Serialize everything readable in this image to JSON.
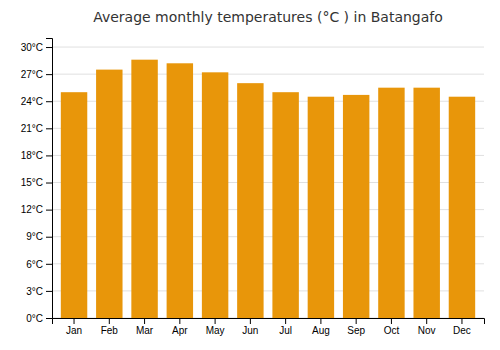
{
  "chart_data": {
    "type": "bar",
    "title": "Average monthly temperatures (°C ) in Batangafo",
    "categories": [
      "Jan",
      "Feb",
      "Mar",
      "Apr",
      "May",
      "Jun",
      "Jul",
      "Aug",
      "Sep",
      "Oct",
      "Nov",
      "Dec"
    ],
    "values": [
      25.0,
      27.5,
      28.6,
      28.2,
      27.2,
      26.0,
      25.0,
      24.5,
      24.7,
      25.5,
      25.5,
      24.5
    ],
    "color": "#E8960A",
    "ylim": [
      0,
      31
    ],
    "yticks": [
      {
        "value": 0,
        "label": "0°C"
      },
      {
        "value": 3,
        "label": "3°C"
      },
      {
        "value": 6,
        "label": "6°C"
      },
      {
        "value": 9,
        "label": "9°C"
      },
      {
        "value": 12,
        "label": "12°C"
      },
      {
        "value": 15,
        "label": "15°C"
      },
      {
        "value": 18,
        "label": "18°C"
      },
      {
        "value": 21,
        "label": "21°C"
      },
      {
        "value": 24,
        "label": "24°C"
      },
      {
        "value": 27,
        "label": "27°C"
      },
      {
        "value": 30,
        "label": "30°C"
      }
    ],
    "grid": true
  }
}
